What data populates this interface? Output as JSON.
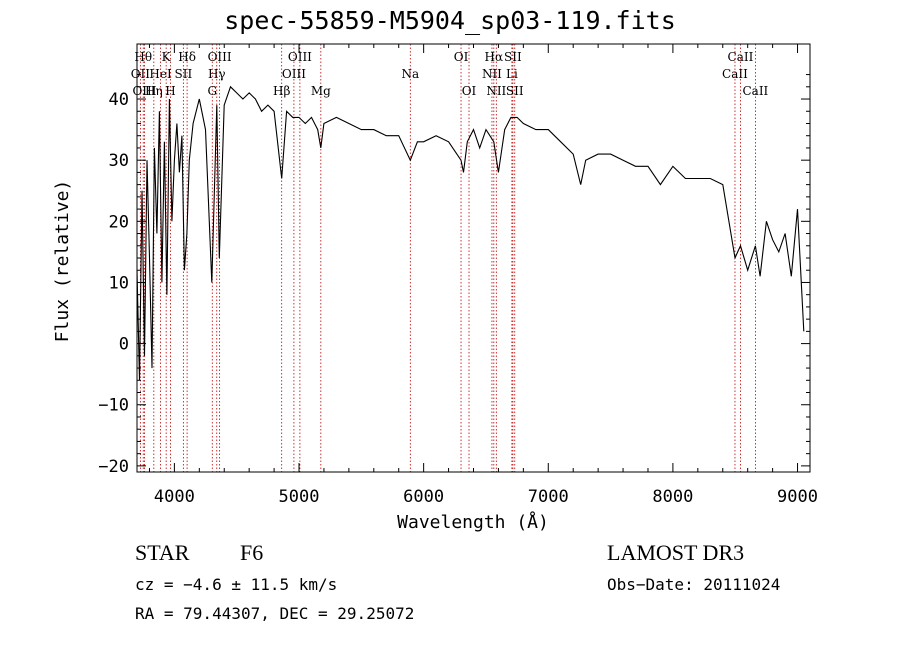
{
  "title": "spec-55859-M5904_sp03-119.fits",
  "chart_data": {
    "type": "line",
    "title": "spec-55859-M5904_sp03-119.fits",
    "xlabel": "Wavelength (Å)",
    "ylabel": "Flux (relative)",
    "xlim": [
      3700,
      9100
    ],
    "ylim": [
      -21,
      49
    ],
    "xticks": [
      4000,
      5000,
      6000,
      7000,
      8000,
      9000
    ],
    "yticks": [
      -20,
      -10,
      0,
      10,
      20,
      30,
      40
    ],
    "x": [
      3700,
      3720,
      3740,
      3760,
      3780,
      3800,
      3820,
      3840,
      3860,
      3880,
      3900,
      3920,
      3940,
      3960,
      3980,
      4000,
      4020,
      4040,
      4060,
      4080,
      4100,
      4120,
      4150,
      4200,
      4250,
      4300,
      4340,
      4360,
      4400,
      4450,
      4500,
      4550,
      4600,
      4650,
      4700,
      4750,
      4800,
      4861,
      4900,
      4950,
      5000,
      5050,
      5100,
      5150,
      5175,
      5200,
      5300,
      5400,
      5500,
      5600,
      5700,
      5800,
      5893,
      5950,
      6000,
      6100,
      6200,
      6300,
      6320,
      6350,
      6400,
      6450,
      6500,
      6563,
      6600,
      6650,
      6700,
      6750,
      6800,
      6900,
      7000,
      7100,
      7200,
      7260,
      7300,
      7400,
      7500,
      7600,
      7700,
      7800,
      7900,
      8000,
      8100,
      8200,
      8300,
      8400,
      8498,
      8520,
      8542,
      8600,
      8662,
      8700,
      8750,
      8800,
      8850,
      8900,
      8950,
      9000,
      9050
    ],
    "y": [
      12,
      -6,
      25,
      -2,
      30,
      14,
      -4,
      32,
      18,
      38,
      10,
      33,
      8,
      40,
      20,
      30,
      36,
      28,
      34,
      12,
      18,
      30,
      36,
      40,
      35,
      10,
      39,
      14,
      39,
      42,
      41,
      40,
      41,
      40,
      38,
      39,
      38,
      27,
      38,
      37,
      37,
      36,
      37,
      35,
      32,
      36,
      37,
      36,
      35,
      35,
      34,
      34,
      30,
      33,
      33,
      34,
      33,
      30,
      28,
      33,
      35,
      32,
      35,
      33,
      28,
      35,
      37,
      37,
      36,
      35,
      35,
      33,
      31,
      26,
      30,
      31,
      31,
      30,
      29,
      29,
      26,
      29,
      27,
      27,
      27,
      26,
      14,
      15,
      16,
      12,
      16,
      11,
      20,
      17,
      15,
      18,
      11,
      22,
      2
    ],
    "spectral_lines": [
      {
        "label": "Hθ",
        "wavelength": 3750,
        "row": 1
      },
      {
        "label": "OII",
        "wavelength": 3727,
        "row": 2
      },
      {
        "label": "OIII",
        "wavelength": 3760,
        "row": 3
      },
      {
        "label": "Hη",
        "wavelength": 3835,
        "row": 3
      },
      {
        "label": "HeI",
        "wavelength": 3889,
        "row": 2
      },
      {
        "label": "K",
        "wavelength": 3934,
        "row": 1
      },
      {
        "label": "H",
        "wavelength": 3969,
        "row": 3
      },
      {
        "label": "SII",
        "wavelength": 4072,
        "row": 2
      },
      {
        "label": "Hδ",
        "wavelength": 4102,
        "row": 1
      },
      {
        "label": "OIII",
        "wavelength": 4363,
        "row": 1
      },
      {
        "label": "Hγ",
        "wavelength": 4340,
        "row": 2
      },
      {
        "label": "G",
        "wavelength": 4304,
        "row": 3
      },
      {
        "label": "Hβ",
        "wavelength": 4861,
        "row": 3
      },
      {
        "label": "OIII",
        "wavelength": 5007,
        "row": 1
      },
      {
        "label": "OIII",
        "wavelength": 4959,
        "row": 2
      },
      {
        "label": "Mg",
        "wavelength": 5175,
        "row": 3
      },
      {
        "label": "Na",
        "wavelength": 5893,
        "row": 2
      },
      {
        "label": "OI",
        "wavelength": 6300,
        "row": 1
      },
      {
        "label": "OI",
        "wavelength": 6364,
        "row": 3
      },
      {
        "label": "Hα",
        "wavelength": 6563,
        "row": 1
      },
      {
        "label": "SII",
        "wavelength": 6716,
        "row": 1
      },
      {
        "label": "NII",
        "wavelength": 6548,
        "row": 2
      },
      {
        "label": "Li",
        "wavelength": 6708,
        "row": 2
      },
      {
        "label": "NII",
        "wavelength": 6583,
        "row": 3
      },
      {
        "label": "SII",
        "wavelength": 6731,
        "row": 3
      },
      {
        "label": "CaII",
        "wavelength": 8542,
        "row": 1
      },
      {
        "label": "CaII",
        "wavelength": 8498,
        "row": 2
      },
      {
        "label": "CaII",
        "wavelength": 8662,
        "row": 3
      }
    ],
    "line_color": "#c00000"
  },
  "info": {
    "object_type": "STAR",
    "subclass": "F6",
    "survey": "LAMOST DR3",
    "cz": "cz = −4.6 ± 11.5 km/s",
    "obs_date": "Obs−Date: 20111024",
    "coords": "RA =  79.44307, DEC =  29.25072"
  }
}
